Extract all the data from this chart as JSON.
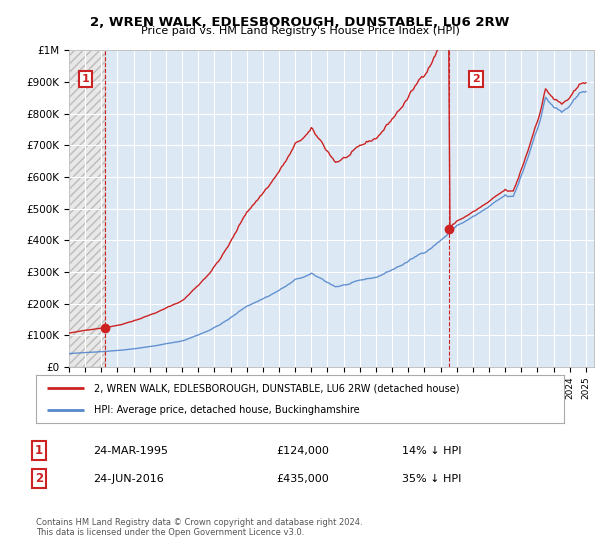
{
  "title": "2, WREN WALK, EDLESBOROUGH, DUNSTABLE, LU6 2RW",
  "subtitle": "Price paid vs. HM Land Registry's House Price Index (HPI)",
  "background_color": "#ffffff",
  "plot_bg_color": "#dde8f5",
  "hatch_bg_color": "#e8e8e8",
  "grid_color": "#ffffff",
  "sale1_date": 1995.25,
  "sale1_price": 124000,
  "sale2_date": 2016.5,
  "sale2_price": 435000,
  "legend_entry1": "2, WREN WALK, EDLESBOROUGH, DUNSTABLE, LU6 2RW (detached house)",
  "legend_entry2": "HPI: Average price, detached house, Buckinghamshire",
  "table_row1": [
    "1",
    "24-MAR-1995",
    "£124,000",
    "14% ↓ HPI"
  ],
  "table_row2": [
    "2",
    "24-JUN-2016",
    "£435,000",
    "35% ↓ HPI"
  ],
  "footer": "Contains HM Land Registry data © Crown copyright and database right 2024.\nThis data is licensed under the Open Government Licence v3.0.",
  "ylim": [
    0,
    1000000
  ],
  "yticks": [
    0,
    100000,
    200000,
    300000,
    400000,
    500000,
    600000,
    700000,
    800000,
    900000,
    1000000
  ],
  "ytick_labels": [
    "£0",
    "£100K",
    "£200K",
    "£300K",
    "£400K",
    "£500K",
    "£600K",
    "£700K",
    "£800K",
    "£900K",
    "£1M"
  ],
  "hpi_color": "#5588cc",
  "sale_color": "#cc2222",
  "annotation_box_color": "#cc2222",
  "xmin": 1993,
  "xmax": 2025.5
}
